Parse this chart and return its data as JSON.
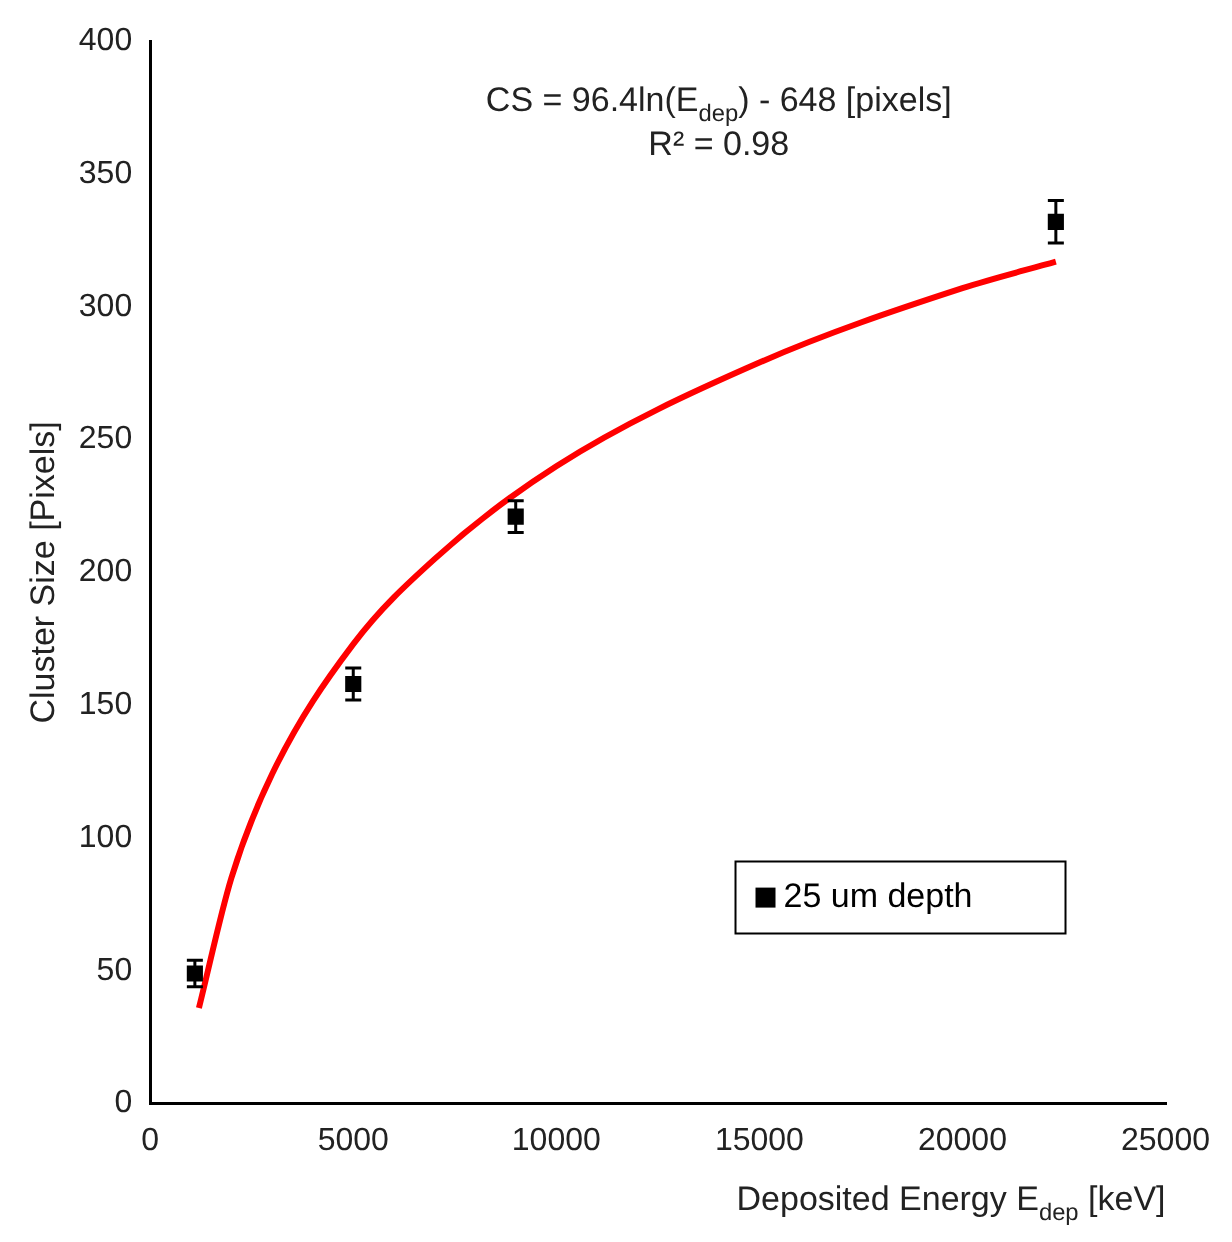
{
  "chart_data": {
    "type": "scatter",
    "xlabel": "Deposited Energy E$_{dep}$ [keV]",
    "ylabel": "Cluster Size [Pixels]",
    "annotations": [
      "CS = 96.4ln(E$_{dep}$) - 648 [pixels]",
      "R² = 0.98"
    ],
    "xlim": [
      0,
      25000
    ],
    "xticks": [
      0,
      5000,
      10000,
      15000,
      20000,
      25000
    ],
    "ylim": [
      0,
      400
    ],
    "yticks": [
      0,
      50,
      100,
      150,
      200,
      250,
      300,
      350,
      400
    ],
    "grid": false,
    "legend": "bottom right",
    "series": [
      {
        "name": "25 um depth",
        "marker": "square",
        "color": "#000000",
        "x": [
          1100,
          5000,
          9000,
          22300
        ],
        "values": [
          49,
          158,
          221,
          332
        ],
        "errors": [
          5,
          6,
          6,
          8
        ]
      },
      {
        "type": "line",
        "marker": "none",
        "color": "#ff0000",
        "x": [
          1200,
          2000,
          3000,
          5000,
          7000,
          10000,
          15000,
          20000,
          22300
        ],
        "values": [
          36,
          85,
          124,
          173,
          205,
          240,
          279,
          307,
          317
        ]
      }
    ]
  }
}
